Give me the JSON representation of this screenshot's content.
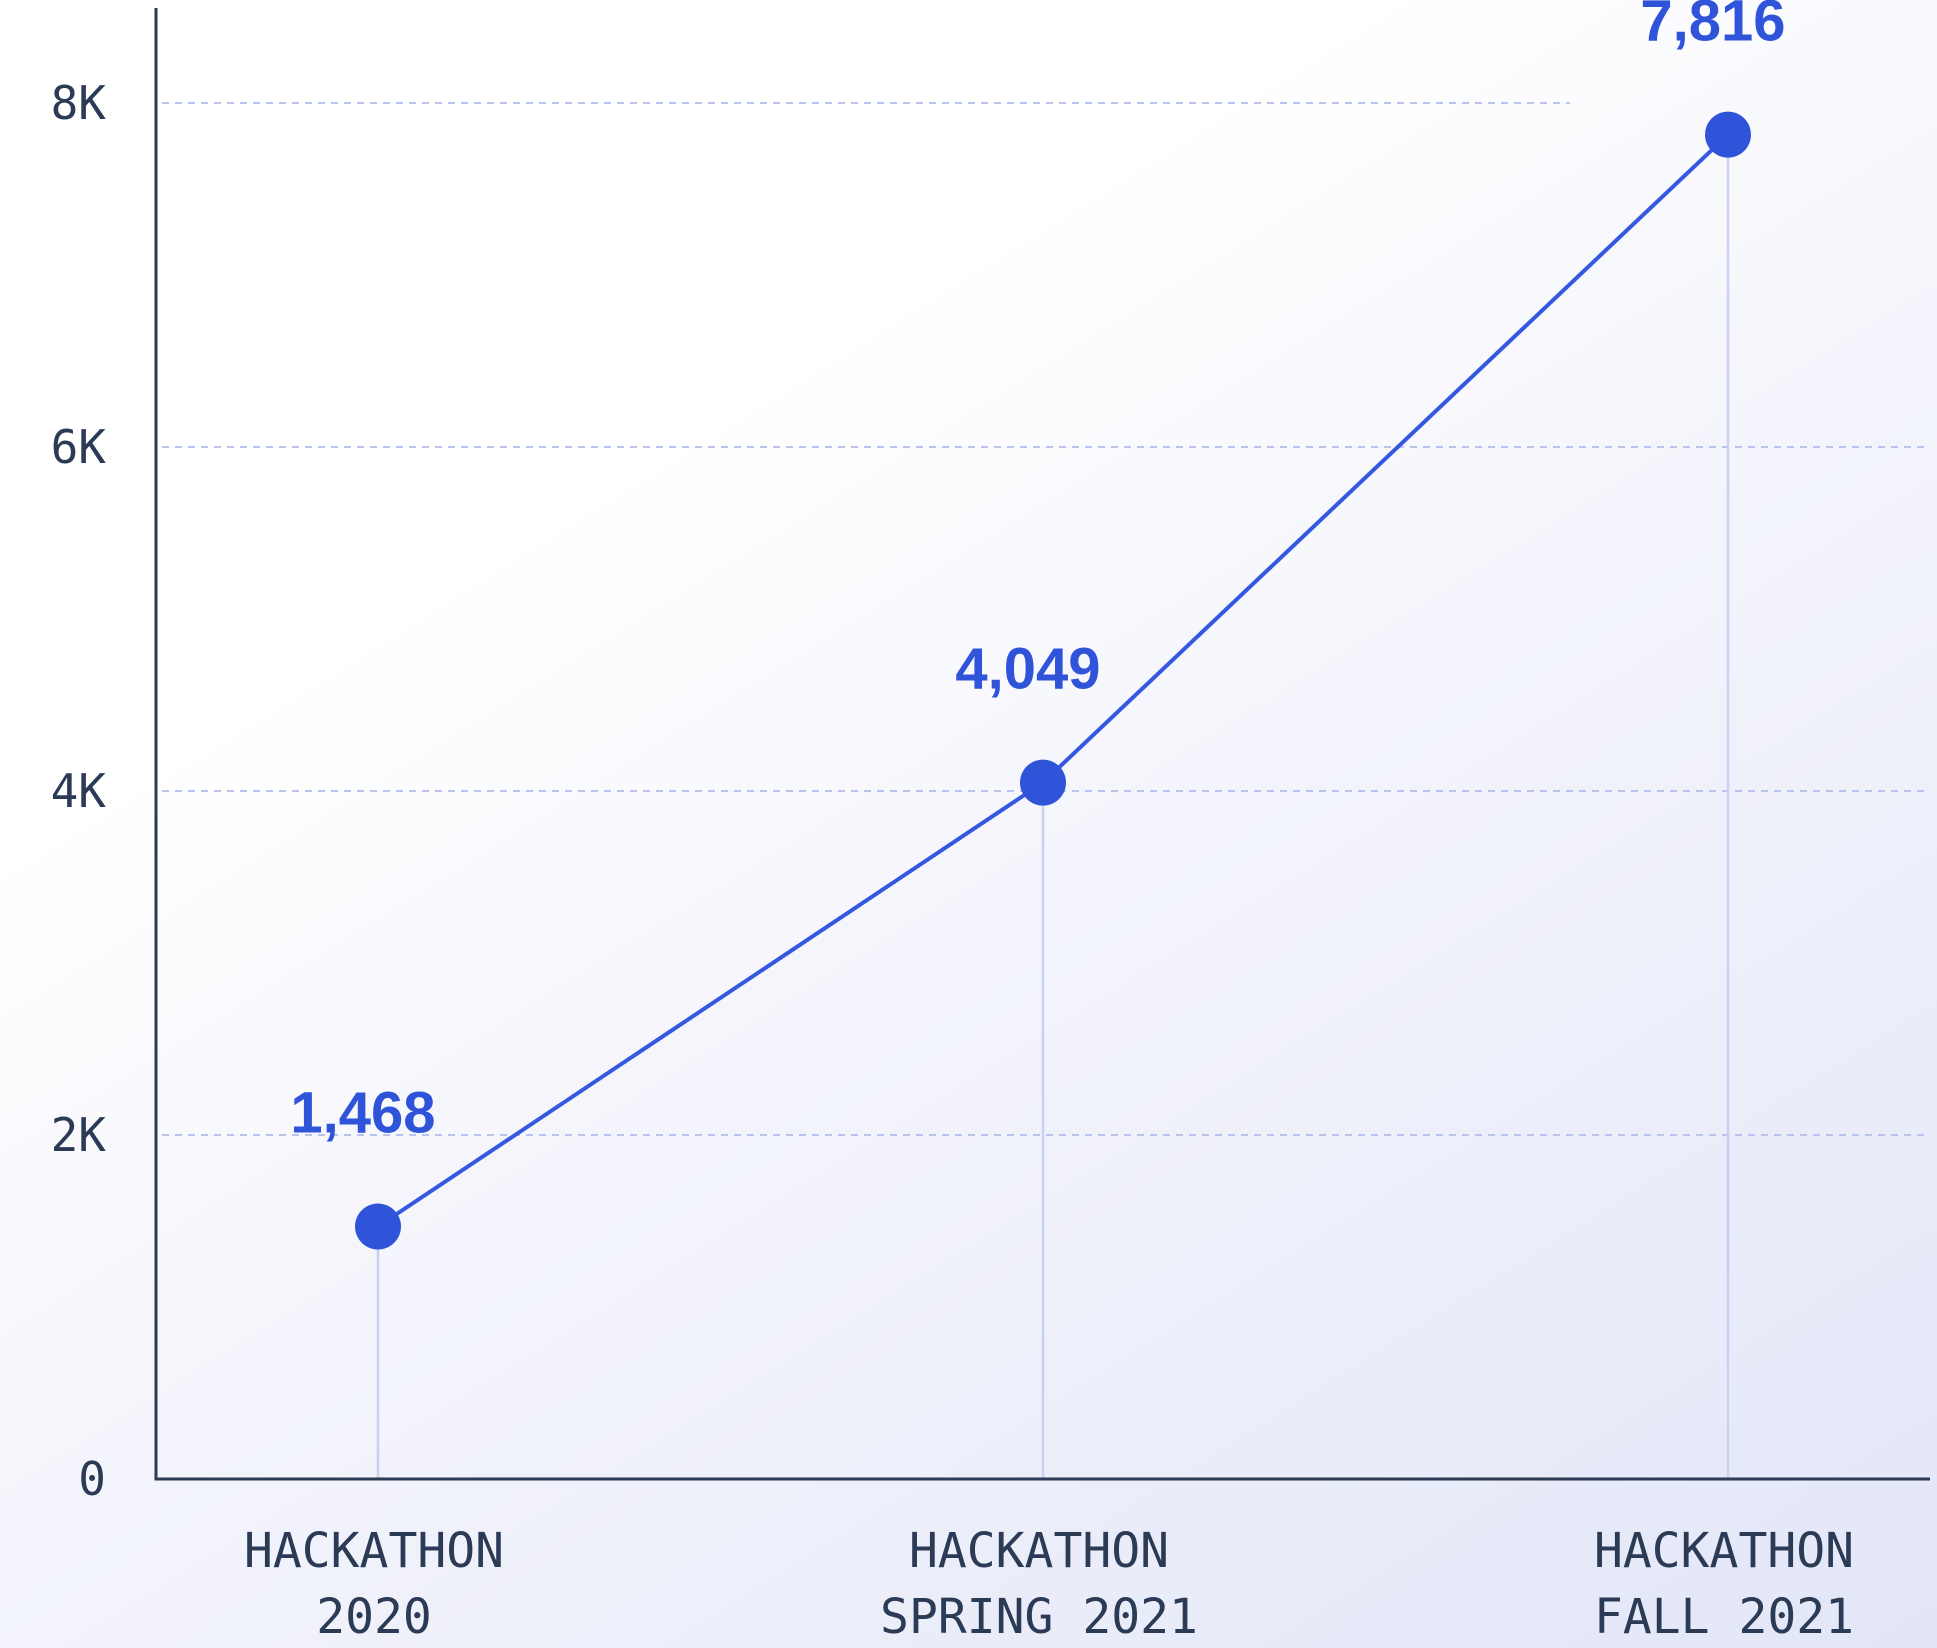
{
  "colors": {
    "line": "#3558e0",
    "point": "#2f54d9",
    "data_label": "#2f54d9",
    "grid": "#b9c3ee",
    "drop_line": "#c9d1f3",
    "axis": "#2b3a55",
    "text": "#2b3a55"
  },
  "chart_data": {
    "type": "line",
    "title": "",
    "xlabel": "",
    "ylabel": "",
    "categories": [
      [
        "HACKATHON",
        "2020"
      ],
      [
        "HACKATHON",
        "SPRING 2021"
      ],
      [
        "HACKATHON",
        "FALL 2021"
      ]
    ],
    "series": [
      {
        "values": [
          1468,
          4049,
          7816
        ],
        "data_labels": [
          "1,468",
          "4,049",
          "7,816"
        ]
      }
    ],
    "ylim": [
      0,
      8000
    ],
    "y_ticks": [
      0,
      2000,
      4000,
      6000,
      8000
    ],
    "y_tick_labels": [
      "0",
      "2K",
      "4K",
      "6K",
      "8K"
    ],
    "grid": "horizontal dashed",
    "drop_lines": true,
    "legend": "none"
  }
}
